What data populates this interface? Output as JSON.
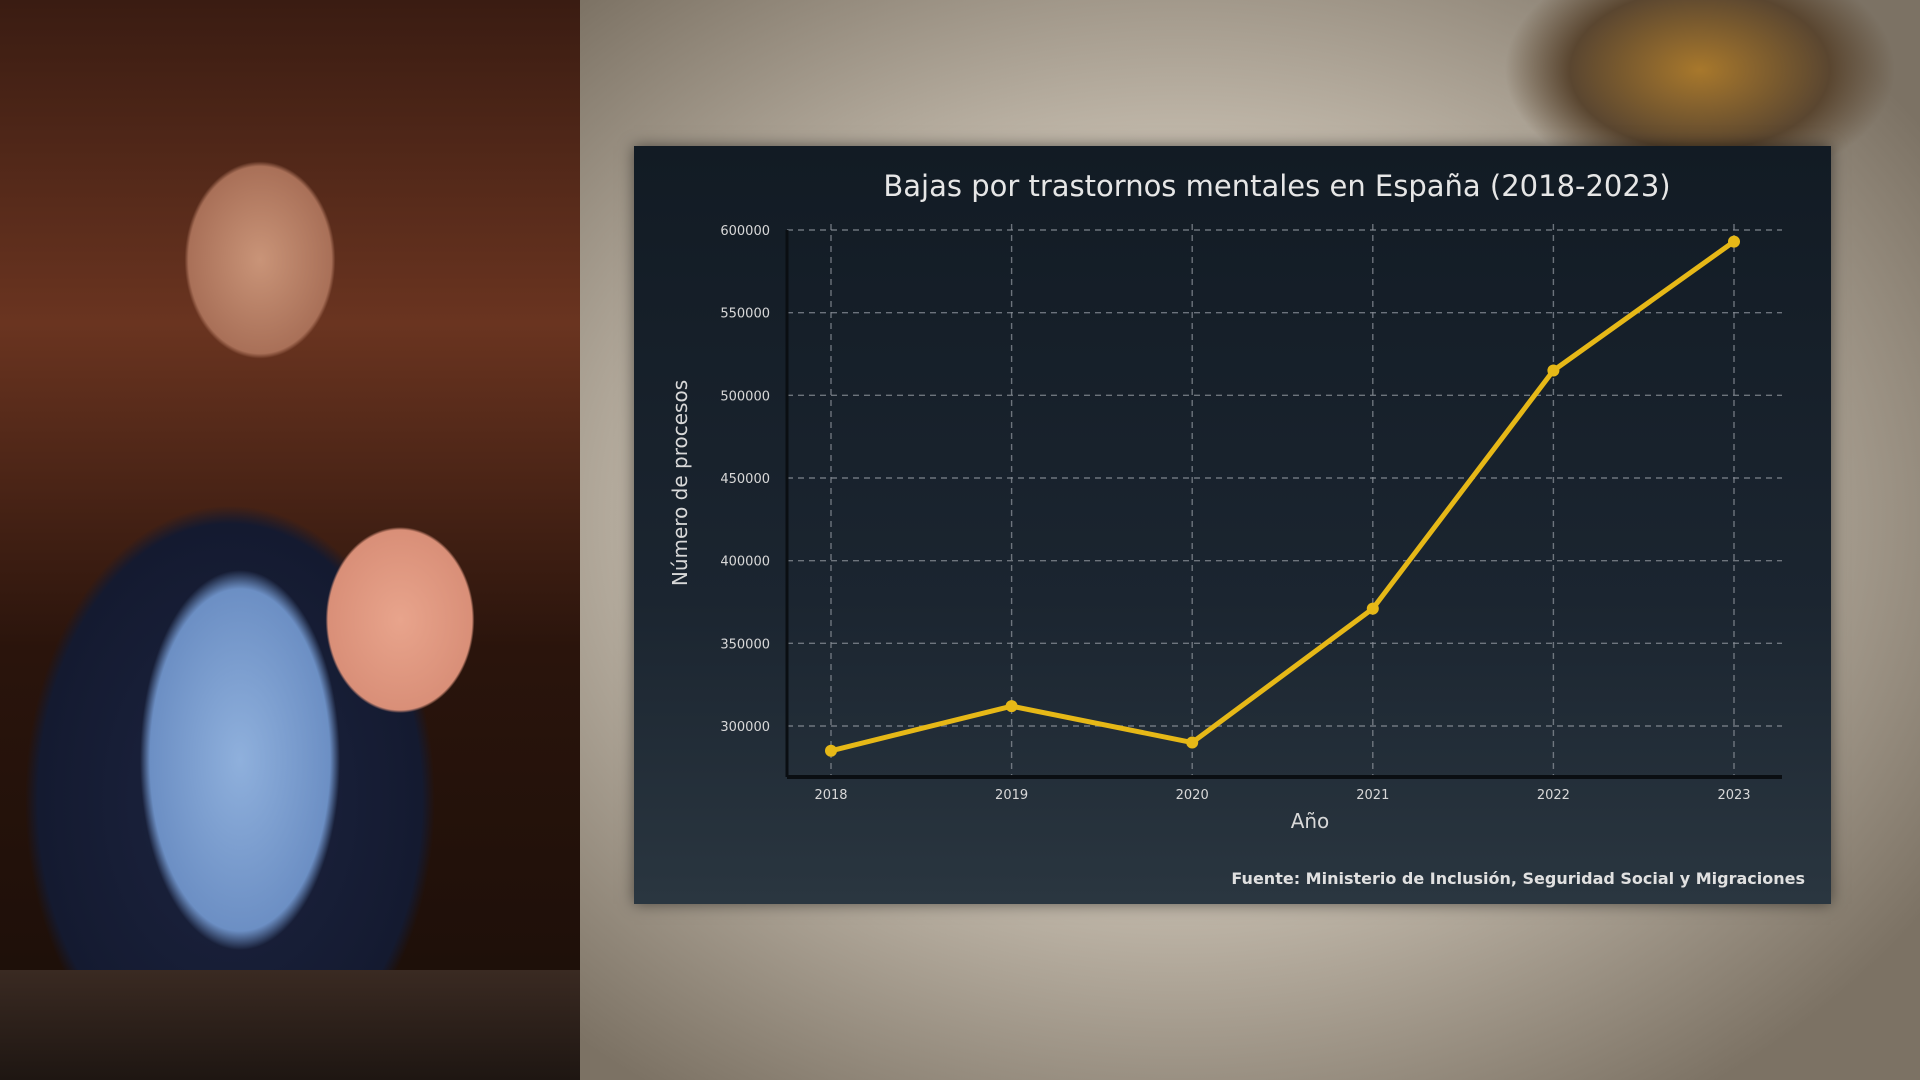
{
  "chart_data": {
    "type": "line",
    "title": "Bajas por trastornos mentales en España (2018-2023)",
    "xlabel": "Año",
    "ylabel": "Número de procesos",
    "x": [
      "2018",
      "2019",
      "2020",
      "2021",
      "2022",
      "2023"
    ],
    "series": [
      {
        "values": [
          285000,
          312000,
          290000,
          371000,
          515000,
          593000
        ],
        "color": "#e6b817"
      }
    ],
    "yticks": [
      300000,
      350000,
      400000,
      450000,
      500000,
      550000,
      600000
    ],
    "ytick_labels": [
      "300000",
      "350000",
      "400000",
      "450000",
      "500000",
      "550000",
      "600000"
    ],
    "ylim": [
      270000,
      600000
    ],
    "grid": true,
    "source": "Fuente: Ministerio de Inclusión, Seguridad Social y Migraciones"
  }
}
